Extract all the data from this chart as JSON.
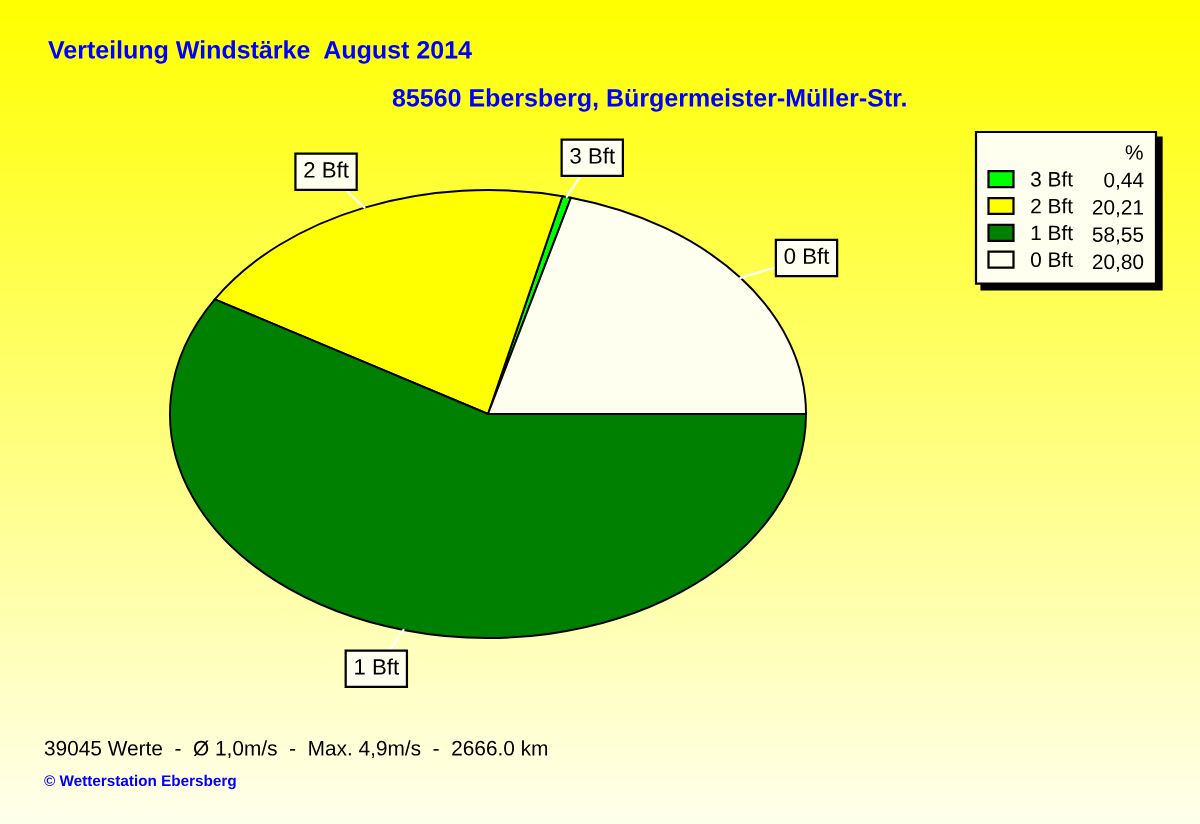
{
  "chart_data": {
    "type": "pie",
    "title": "Verteilung Windstärke  August 2014",
    "subtitle": "85560 Ebersberg, Bürgermeister-Müller-Str.",
    "categories": [
      "3 Bft",
      "2 Bft",
      "1 Bft",
      "0 Bft"
    ],
    "values": [
      0.44,
      20.21,
      58.55,
      20.8
    ],
    "colors": [
      "#00ff00",
      "#ffff00",
      "#008000",
      "#fffff0"
    ],
    "value_labels": [
      "0,44",
      "20,21",
      "58,55",
      "20,80"
    ],
    "legend_title": "%",
    "legend": "top right",
    "annotations": [
      "39045 Werte  -  Ø 1,0m/s  -  Max. 4,9m/s  -  2666.0 km",
      "© Wetterstation Ebersberg"
    ]
  }
}
